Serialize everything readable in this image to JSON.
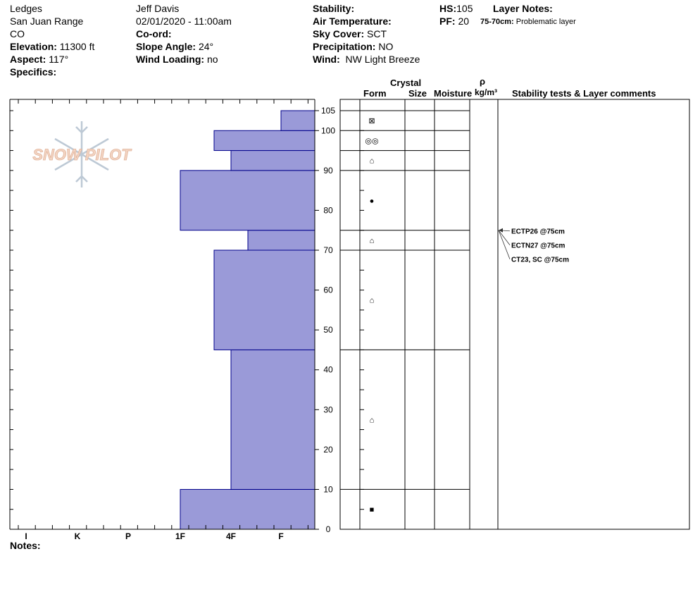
{
  "header": {
    "location": "Ledges",
    "range": "San Juan Range",
    "state": "CO",
    "elevation_label": "Elevation:",
    "elevation_value": "11300 ft",
    "aspect_label": "Aspect:",
    "aspect_value": "117°",
    "specifics_label": "Specifics:",
    "observer": "Jeff Davis",
    "datetime": "02/01/2020 - 11:00am",
    "coord_label": "Co-ord:",
    "slope_label": "Slope Angle:",
    "slope_value": "24°",
    "wind_loading_label": "Wind Loading:",
    "wind_loading_value": "no",
    "stability_label": "Stability:",
    "air_temp_label": "Air Temperature:",
    "sky_label": "Sky Cover:",
    "sky_value": "SCT",
    "precip_label": "Precipitation:",
    "precip_value": "NO",
    "wind_label": "Wind:",
    "wind_value": "NW Light Breeze",
    "hs_label": "HS:",
    "hs_value": "105",
    "pf_label": "PF:",
    "pf_value": "20",
    "layer_notes_label": "Layer Notes:",
    "layer_note_range": "75-70cm:",
    "layer_note_text": "Problematic layer"
  },
  "columns": {
    "crystal": "Crystal",
    "form": "Form",
    "size": "Size",
    "moisture": "Moisture",
    "rho": "ρ",
    "density_unit": "kg/m³",
    "stability_comments": "Stability tests & Layer comments"
  },
  "notes_label": "Notes:",
  "logo_text": "SNOW PILOT",
  "stability_tests": [
    "ECTP26 @75cm",
    "ECTN27 @75cm",
    "CT23, SC @75cm"
  ],
  "chart_data": {
    "type": "bar",
    "orientation": "horizontal",
    "title": "",
    "ylabel": "",
    "y_range": [
      0,
      105
    ],
    "y_ticks": [
      0,
      10,
      20,
      30,
      40,
      50,
      60,
      70,
      80,
      90,
      100,
      105
    ],
    "hardness_scale": [
      "I",
      "K",
      "P",
      "1F",
      "4F",
      "F"
    ],
    "bar_color": "#9a9ad8",
    "outline_color": "#00008b",
    "layers": [
      {
        "bottom": 0,
        "top": 10,
        "hardness": "1F",
        "form": "■"
      },
      {
        "bottom": 10,
        "top": 45,
        "hardness": "4F",
        "form": "⌂"
      },
      {
        "bottom": 45,
        "top": 70,
        "hardness": "4F+",
        "form": "⌂"
      },
      {
        "bottom": 70,
        "top": 75,
        "hardness": "4F-",
        "form": "⌂"
      },
      {
        "bottom": 75,
        "top": 90,
        "hardness": "1F",
        "form": "●"
      },
      {
        "bottom": 90,
        "top": 95,
        "hardness": "4F",
        "form": "⌂"
      },
      {
        "bottom": 95,
        "top": 100,
        "hardness": "4F+",
        "form": "◎◎"
      },
      {
        "bottom": 100,
        "top": 105,
        "hardness": "F",
        "form": "⊠"
      }
    ],
    "test_depth": 75
  }
}
